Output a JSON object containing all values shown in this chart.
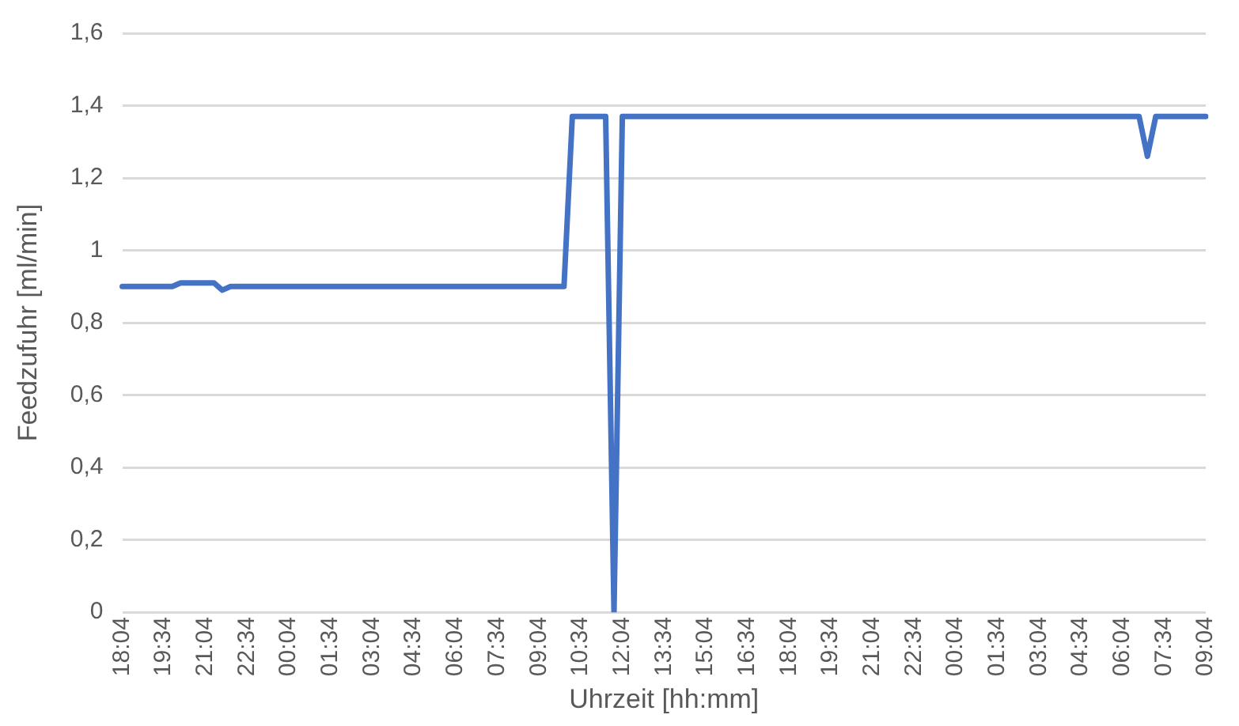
{
  "chart_data": {
    "type": "line",
    "xlabel": "Uhrzeit [hh:mm]",
    "ylabel": "Feedzufuhr [ml/min]",
    "categories": [
      "18:04",
      null,
      null,
      null,
      null,
      "19:34",
      null,
      null,
      null,
      null,
      "21:04",
      null,
      null,
      null,
      null,
      "22:34",
      null,
      null,
      null,
      null,
      "00:04",
      null,
      null,
      null,
      null,
      "01:34",
      null,
      null,
      null,
      null,
      "03:04",
      null,
      null,
      null,
      null,
      "04:34",
      null,
      null,
      null,
      null,
      "06:04",
      null,
      null,
      null,
      null,
      "07:34",
      null,
      null,
      null,
      null,
      "09:04",
      null,
      null,
      null,
      null,
      "10:34",
      null,
      null,
      null,
      null,
      "12:04",
      null,
      null,
      null,
      null,
      "13:34",
      null,
      null,
      null,
      null,
      "15:04",
      null,
      null,
      null,
      null,
      "16:34",
      null,
      null,
      null,
      null,
      "18:04",
      null,
      null,
      null,
      null,
      "19:34",
      null,
      null,
      null,
      null,
      "21:04",
      null,
      null,
      null,
      null,
      "22:34",
      null,
      null,
      null,
      null,
      "00:04",
      null,
      null,
      null,
      null,
      "01:34",
      null,
      null,
      null,
      null,
      "03:04",
      null,
      null,
      null,
      null,
      "04:34",
      null,
      null,
      null,
      null,
      "06:04",
      null,
      null,
      null,
      null,
      "07:34",
      null,
      null,
      null,
      null,
      "09:04"
    ],
    "series": [
      {
        "color": "#4472c4",
        "values": [
          0.9,
          0.9,
          0.9,
          0.9,
          0.9,
          0.9,
          0.9,
          0.91,
          0.91,
          0.91,
          0.91,
          0.91,
          0.89,
          0.9,
          0.9,
          0.9,
          0.9,
          0.9,
          0.9,
          0.9,
          0.9,
          0.9,
          0.9,
          0.9,
          0.9,
          0.9,
          0.9,
          0.9,
          0.9,
          0.9,
          0.9,
          0.9,
          0.9,
          0.9,
          0.9,
          0.9,
          0.9,
          0.9,
          0.9,
          0.9,
          0.9,
          0.9,
          0.9,
          0.9,
          0.9,
          0.9,
          0.9,
          0.9,
          0.9,
          0.9,
          0.9,
          0.9,
          0.9,
          0.9,
          1.37,
          1.37,
          1.37,
          1.37,
          1.37,
          0,
          1.37,
          1.37,
          1.37,
          1.37,
          1.37,
          1.37,
          1.37,
          1.37,
          1.37,
          1.37,
          1.37,
          1.37,
          1.37,
          1.37,
          1.37,
          1.37,
          1.37,
          1.37,
          1.37,
          1.37,
          1.37,
          1.37,
          1.37,
          1.37,
          1.37,
          1.37,
          1.37,
          1.37,
          1.37,
          1.37,
          1.37,
          1.37,
          1.37,
          1.37,
          1.37,
          1.37,
          1.37,
          1.37,
          1.37,
          1.37,
          1.37,
          1.37,
          1.37,
          1.37,
          1.37,
          1.37,
          1.37,
          1.37,
          1.37,
          1.37,
          1.37,
          1.37,
          1.37,
          1.37,
          1.37,
          1.37,
          1.37,
          1.37,
          1.37,
          1.37,
          1.37,
          1.37,
          1.37,
          1.26,
          1.37,
          1.37,
          1.37,
          1.37,
          1.37,
          1.37,
          1.37
        ]
      }
    ],
    "ylim": [
      0,
      1.6
    ],
    "yticks": [
      {
        "value": 0,
        "label": "0"
      },
      {
        "value": 0.2,
        "label": "0,2"
      },
      {
        "value": 0.4,
        "label": "0,4"
      },
      {
        "value": 0.6,
        "label": "0,6"
      },
      {
        "value": 0.8,
        "label": "0,8"
      },
      {
        "value": 1,
        "label": "1"
      },
      {
        "value": 1.2,
        "label": "1,2"
      },
      {
        "value": 1.4,
        "label": "1,4"
      },
      {
        "value": 1.6,
        "label": "1,6"
      }
    ],
    "grid": "y",
    "legend": false,
    "marker": "none",
    "line_style": "solid"
  }
}
